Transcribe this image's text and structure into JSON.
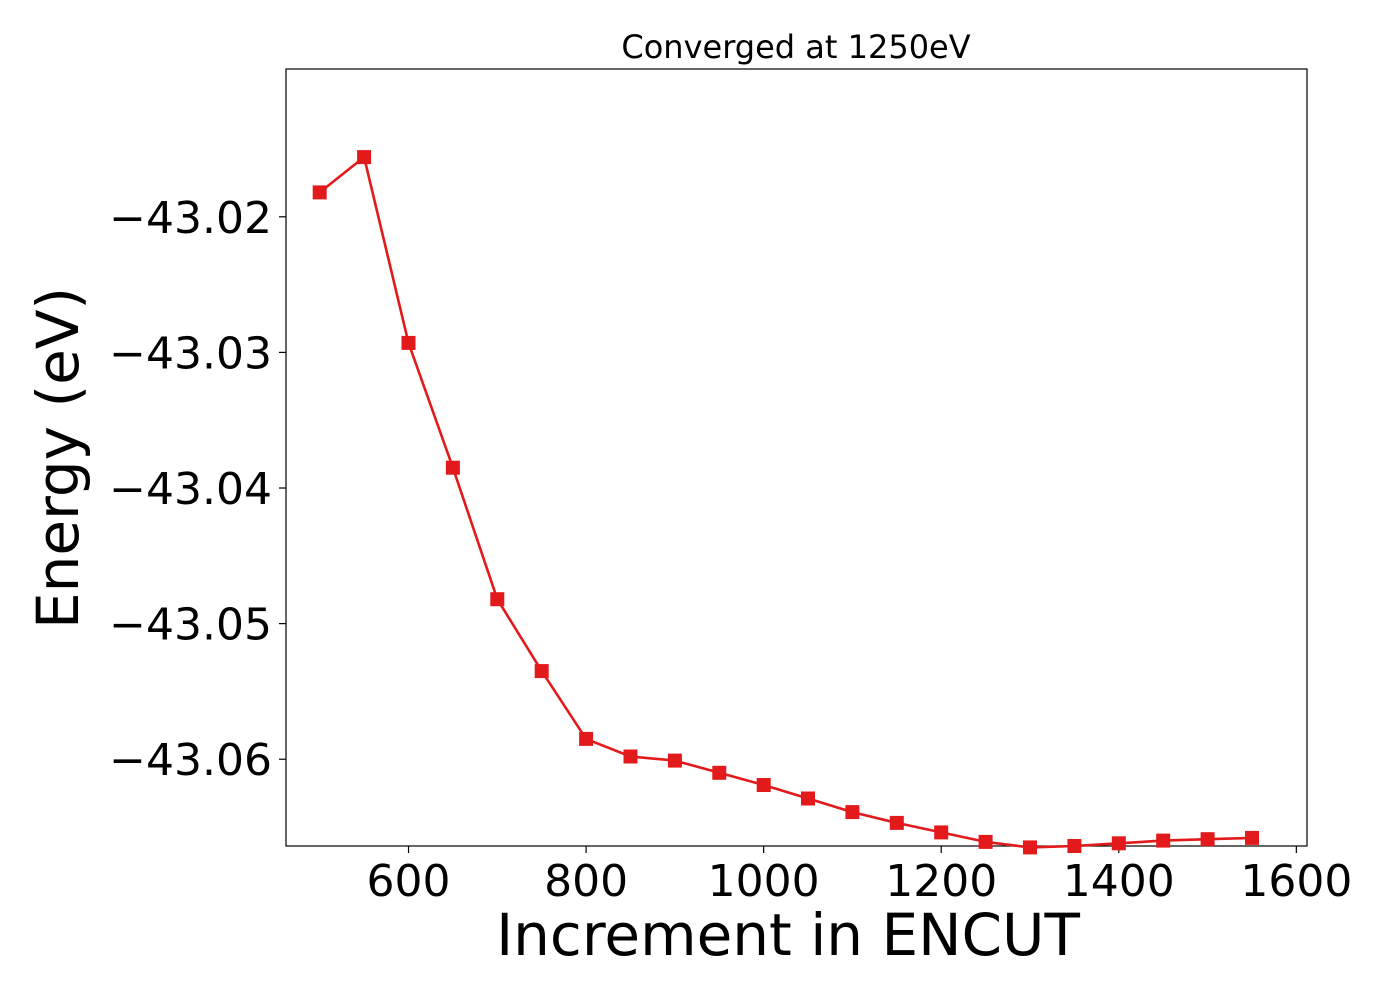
{
  "chart_data": {
    "type": "line",
    "title": "Converged at 1250eV",
    "xlabel": "Increment in ENCUT",
    "ylabel": "Energy (eV)",
    "xlim": [
      462,
      1612
    ],
    "ylim": [
      -43.0664,
      -43.0091
    ],
    "xticks": [
      600,
      800,
      1000,
      1200,
      1400,
      1600
    ],
    "xtick_labels": [
      "600",
      "800",
      "1000",
      "1200",
      "1400",
      "1600"
    ],
    "yticks": [
      -43.02,
      -43.03,
      -43.04,
      -43.05,
      -43.06
    ],
    "ytick_labels": [
      "−43.02",
      "−43.03",
      "−43.04",
      "−43.05",
      "−43.06"
    ],
    "grid": false,
    "legend": "none",
    "series": [
      {
        "color": "#e31a1c",
        "marker": "square",
        "x": [
          500,
          550,
          600,
          650,
          700,
          750,
          800,
          850,
          900,
          950,
          1000,
          1050,
          1100,
          1150,
          1200,
          1250,
          1300,
          1350,
          1400,
          1450,
          1500,
          1550
        ],
        "y": [
          -43.0182,
          -43.0156,
          -43.0293,
          -43.0385,
          -43.0482,
          -43.0535,
          -43.0585,
          -43.0598,
          -43.0601,
          -43.061,
          -43.0619,
          -43.0629,
          -43.0639,
          -43.0647,
          -43.0654,
          -43.0661,
          -43.0665,
          -43.0664,
          -43.0662,
          -43.066,
          -43.0659,
          -43.0658
        ]
      }
    ]
  }
}
